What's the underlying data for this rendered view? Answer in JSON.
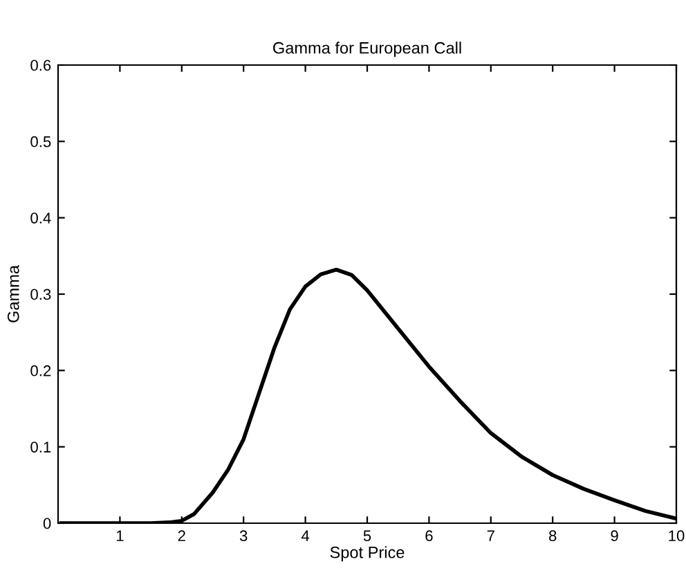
{
  "chart_data": {
    "type": "line",
    "title": "Gamma for European Call",
    "xlabel": "Spot Price",
    "ylabel": "Gamma",
    "x": [
      0.05,
      0.5,
      1,
      1.5,
      1.8,
      2,
      2.2,
      2.5,
      2.75,
      3,
      3.25,
      3.5,
      3.75,
      4,
      4.25,
      4.5,
      4.75,
      5,
      5.5,
      6,
      6.5,
      7,
      7.5,
      8,
      8.5,
      9,
      9.5,
      10
    ],
    "series": [
      {
        "color": "#000000",
        "values": [
          0,
          0,
          0,
          0,
          0.001,
          0.003,
          0.012,
          0.04,
          0.07,
          0.11,
          0.17,
          0.23,
          0.28,
          0.31,
          0.326,
          0.332,
          0.325,
          0.305,
          0.255,
          0.205,
          0.16,
          0.118,
          0.087,
          0.063,
          0.045,
          0.03,
          0.016,
          0.006
        ]
      }
    ],
    "xlim": [
      0,
      10
    ],
    "ylim": [
      0,
      0.6
    ],
    "xticks": [
      1,
      2,
      3,
      4,
      5,
      6,
      7,
      8,
      9,
      10
    ],
    "yticks": [
      0,
      0.1,
      0.2,
      0.3,
      0.4,
      0.5,
      0.6
    ],
    "grid": false,
    "legend": false,
    "marker": "none",
    "line_style": "solid"
  }
}
